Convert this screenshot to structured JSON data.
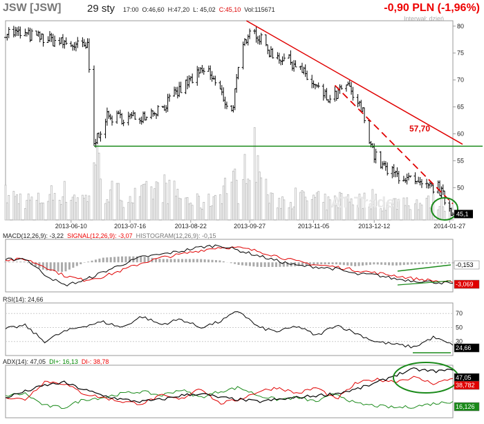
{
  "header": {
    "ticker": "JSW [JSW]",
    "date": "29 sty",
    "time": "17:00",
    "open": "O:46,60",
    "high": "H:47,20",
    "low": "L: 45,02",
    "close": "C:45,10",
    "volume": "Vol:115671",
    "change": "-0,90 PLN (-1,96%)",
    "interval": "Interwał: dzień"
  },
  "watermark": "AT Trader",
  "annotations": {
    "support_label": "57,70",
    "last_price": "45,1"
  },
  "colors": {
    "price_bar": "#000000",
    "volume": "#bbbbbb",
    "trend": "#e00000",
    "support": "#1a8a1a",
    "signal": "#e00000",
    "macd": "#000000",
    "histogram": "#aaaaaa",
    "di_plus": "#1a8a1a",
    "di_minus": "#e00000",
    "adx": "#000000",
    "highlight_ellipse": "#1a8a1a"
  },
  "chart_data": [
    {
      "type": "ohlc",
      "title": "JSW [JSW]",
      "x_dates": [
        "2013-06-10",
        "2013-07-16",
        "2013-08-22",
        "2013-09-27",
        "2013-11-05",
        "2013-12-12",
        "2014-01-27"
      ],
      "yticks": [
        50,
        55,
        60,
        65,
        70,
        75,
        80
      ],
      "ylim": [
        44,
        81
      ],
      "x": [
        "2013-05-01",
        "2013-05-20",
        "2013-06-03",
        "2013-06-20",
        "2013-06-24",
        "2013-07-01",
        "2013-07-20",
        "2013-08-05",
        "2013-08-22",
        "2013-09-01",
        "2013-09-16",
        "2013-09-22",
        "2013-09-27",
        "2013-10-10",
        "2013-10-25",
        "2013-11-05",
        "2013-11-15",
        "2013-11-25",
        "2013-12-05",
        "2013-12-12",
        "2013-12-20",
        "2013-12-30",
        "2014-01-10",
        "2014-01-20",
        "2014-01-29"
      ],
      "close": [
        79,
        78,
        77,
        76,
        58,
        63,
        63,
        65,
        70,
        72,
        64,
        75,
        80,
        75,
        73,
        69,
        66,
        69,
        64,
        56,
        53,
        52,
        50,
        50,
        45.1
      ],
      "volume": [
        12,
        9,
        14,
        10,
        33,
        14,
        11,
        16,
        9,
        8,
        20,
        13,
        38,
        9,
        11,
        10,
        8,
        12,
        9,
        11,
        7,
        10,
        8,
        9,
        7
      ],
      "support": {
        "value": 57.7,
        "label": "57,70"
      },
      "trend_line_solid": [
        [
          "2013-09-25",
          81
        ],
        [
          "2014-01-29",
          58.7
        ]
      ],
      "trend_line_dashed": [
        [
          "2013-11-18",
          69
        ],
        [
          "2014-01-29",
          47
        ]
      ]
    },
    {
      "type": "line",
      "title": "MACD(12,26,9): -3,22",
      "series": [
        {
          "name": "MACD",
          "last": -3.22,
          "values": [
            0.4,
            0.6,
            -1.8,
            -3.5,
            -2.8,
            -1.5,
            -0.3,
            0.8,
            1.2,
            1.7,
            2.3,
            2.6,
            1.8,
            1.0,
            0.2,
            -0.5,
            -0.7,
            -1.0,
            -1.8,
            -1.9,
            -2.5,
            -2.8,
            -3.0,
            -3.2
          ]
        },
        {
          "name": "SIGNAL",
          "last": -3.07,
          "values": [
            0.3,
            0.5,
            -0.6,
            -2.0,
            -2.7,
            -2.2,
            -1.2,
            -0.1,
            0.7,
            1.2,
            1.8,
            2.3,
            2.2,
            1.7,
            0.9,
            0.1,
            -0.4,
            -0.7,
            -1.2,
            -1.6,
            -2.0,
            -2.5,
            -2.8,
            -3.07
          ]
        },
        {
          "name": "HISTOGRAM",
          "last": -0.15,
          "values": [
            0.1,
            0.1,
            -1.2,
            -1.5,
            -0.1,
            0.7,
            0.9,
            0.9,
            0.5,
            0.5,
            0.5,
            0.3,
            -0.4,
            -0.7,
            -0.7,
            -0.6,
            -0.3,
            -0.3,
            -0.6,
            -0.3,
            -0.5,
            -0.3,
            -0.2,
            -0.15
          ]
        }
      ],
      "labels": {
        "macd": "MACD(12,26,9): -3,22",
        "signal": "SIGNAL(12,26,9): -3,07",
        "histogram": "HISTOGRAM(12,26,9): -0,15"
      },
      "right_values": [
        "-0,153",
        "-3,069"
      ]
    },
    {
      "type": "line",
      "title": "RSI(14): 24,66",
      "yticks": [
        30,
        50,
        70
      ],
      "series": [
        {
          "name": "RSI",
          "values": [
            48,
            53,
            30,
            44,
            52,
            58,
            50,
            66,
            54,
            62,
            50,
            58,
            74,
            50,
            44,
            52,
            38,
            54,
            42,
            30,
            26,
            22,
            36,
            24.66
          ]
        }
      ],
      "right_value": "24,66"
    },
    {
      "type": "line",
      "title": "ADX(14): 47,05",
      "series": [
        {
          "name": "ADX",
          "values": [
            20,
            26,
            32,
            35,
            28,
            22,
            18,
            16,
            18,
            22,
            24,
            20,
            18,
            16,
            18,
            20,
            22,
            24,
            28,
            34,
            42,
            48,
            46,
            47.05
          ]
        },
        {
          "name": "DI+",
          "values": [
            22,
            24,
            12,
            10,
            18,
            20,
            24,
            26,
            22,
            28,
            20,
            26,
            30,
            22,
            18,
            20,
            16,
            24,
            14,
            12,
            10,
            11,
            14,
            16.13
          ]
        },
        {
          "name": "DI-",
          "values": [
            20,
            18,
            36,
            34,
            24,
            20,
            16,
            14,
            22,
            18,
            30,
            14,
            18,
            26,
            30,
            24,
            30,
            18,
            34,
            38,
            36,
            40,
            34,
            38.78
          ]
        }
      ],
      "labels": {
        "adx": "ADX(14): 47,05",
        "di_plus": "DI+: 16,13",
        "di_minus": "DI-: 38,78"
      },
      "right_values": [
        "47,05",
        "38,782",
        "16,126"
      ]
    }
  ]
}
